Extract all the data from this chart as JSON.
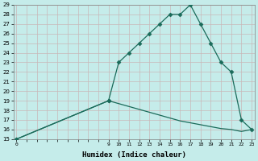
{
  "xlabel": "Humidex (Indice chaleur)",
  "bg_color": "#c5ecea",
  "grid_color": "#c8b8b8",
  "line_color": "#1a6b5a",
  "upper_x": [
    0,
    9,
    10,
    11,
    12,
    13,
    14,
    15,
    16,
    17,
    18,
    19,
    20,
    21,
    22,
    23
  ],
  "upper_y": [
    15,
    19,
    23,
    24,
    25,
    26,
    27,
    28,
    28,
    29,
    27,
    25,
    23,
    22,
    17,
    16
  ],
  "lower_x": [
    0,
    9,
    10,
    11,
    12,
    13,
    14,
    15,
    16,
    17,
    18,
    19,
    20,
    21,
    22,
    23
  ],
  "lower_y": [
    15,
    19,
    18.7,
    18.4,
    18.1,
    17.8,
    17.5,
    17.2,
    16.9,
    16.7,
    16.5,
    16.3,
    16.1,
    16.0,
    15.8,
    16.0
  ],
  "ylim": [
    15,
    29
  ],
  "yticks": [
    15,
    16,
    17,
    18,
    19,
    20,
    21,
    22,
    23,
    24,
    25,
    26,
    27,
    28,
    29
  ],
  "xlim": [
    -0.3,
    23.3
  ],
  "marker": "D",
  "markersize": 2.5,
  "linewidth": 0.9
}
